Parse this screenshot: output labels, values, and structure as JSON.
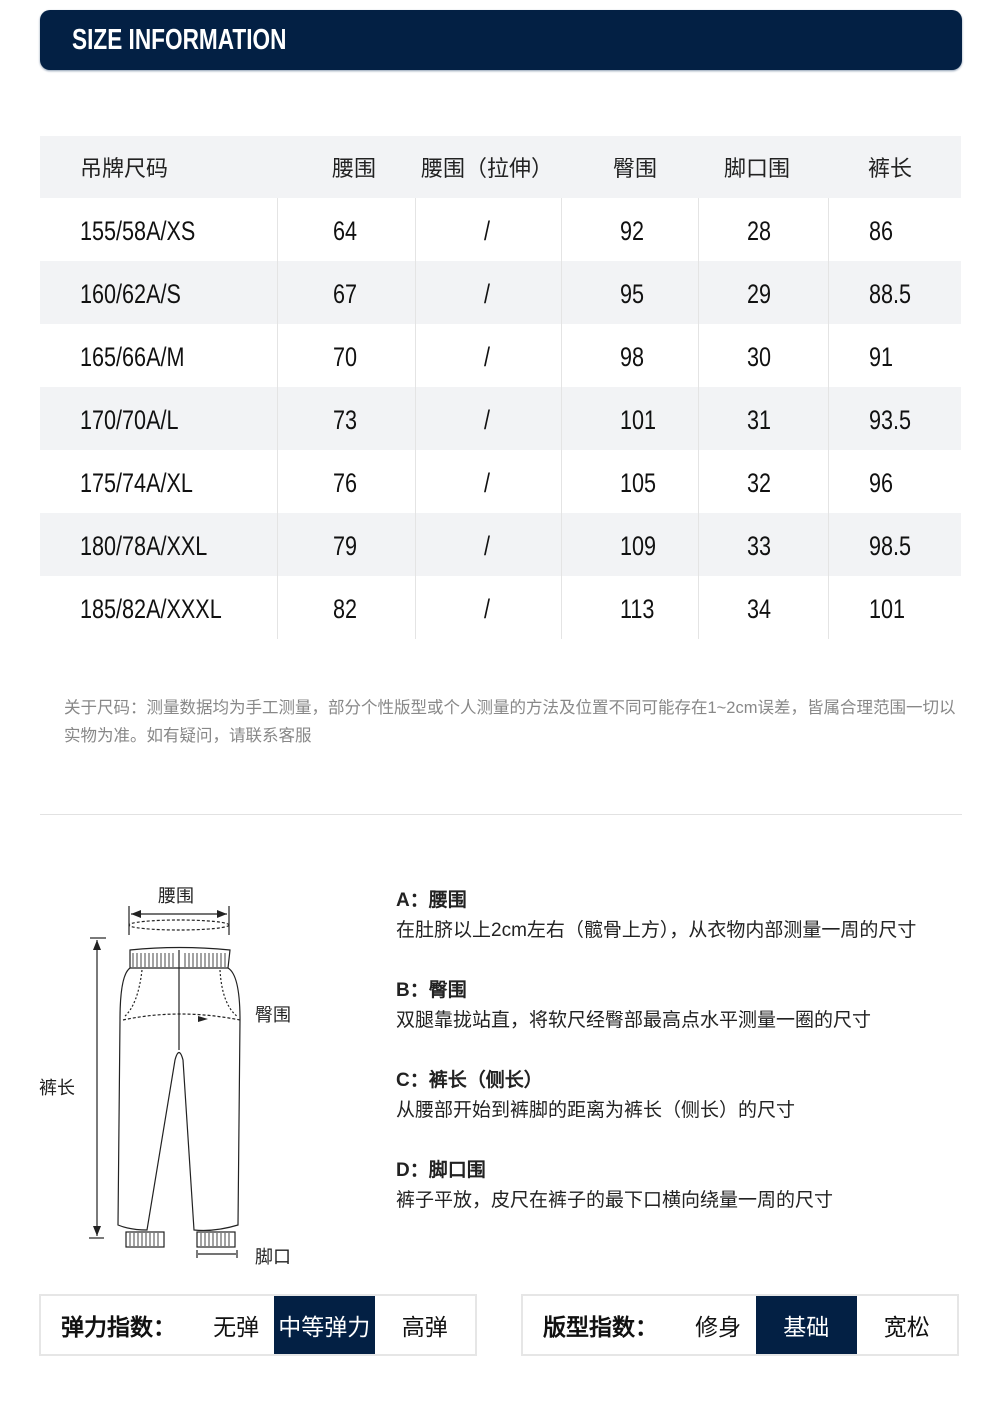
{
  "header": {
    "title": "SIZE INFORMATION"
  },
  "table": {
    "columns": [
      "吊牌尺码",
      "腰围",
      "腰围（拉伸）",
      "臀围",
      "脚口围",
      "裤长"
    ],
    "rows": [
      [
        "155/58A/XS",
        "64",
        "/",
        "92",
        "28",
        "86"
      ],
      [
        "160/62A/S",
        "67",
        "/",
        "95",
        "29",
        "88.5"
      ],
      [
        "165/66A/M",
        "70",
        "/",
        "98",
        "30",
        "91"
      ],
      [
        "170/70A/L",
        "73",
        "/",
        "101",
        "31",
        "93.5"
      ],
      [
        "175/74A/XL",
        "76",
        "/",
        "105",
        "32",
        "96"
      ],
      [
        "180/78A/XXL",
        "79",
        "/",
        "109",
        "33",
        "98.5"
      ],
      [
        "185/82A/XXXL",
        "82",
        "/",
        "113",
        "34",
        "101"
      ]
    ]
  },
  "note": "关于尺码：测量数据均为手工测量，部分个性版型或个人测量的方法及位置不同可能存在1~2cm误差，皆属合理范围一切以实物为准。如有疑问，请联系客服",
  "diagram": {
    "waist": "腰围",
    "hip": "臀围",
    "length": "裤长",
    "hem": "脚口"
  },
  "measures": [
    {
      "title": "A：腰围",
      "text": "在肚脐以上2cm左右（髋骨上方），从衣物内部测量一周的尺寸"
    },
    {
      "title": "B：臀围",
      "text": "双腿靠拢站直，将软尺经臀部最高点水平测量一圈的尺寸"
    },
    {
      "title": "C：裤长（侧长）",
      "text": "从腰部开始到裤脚的距离为裤长（侧长）的尺寸"
    },
    {
      "title": "D：脚口围",
      "text": "裤子平放，皮尺在裤子的最下口横向绕量一周的尺寸"
    }
  ],
  "elasticity": {
    "label": "弹力指数：",
    "options": [
      "无弹",
      "中等弹力",
      "高弹"
    ],
    "selected": "中等弹力"
  },
  "fit": {
    "label": "版型指数：",
    "options": [
      "修身",
      "基础",
      "宽松"
    ],
    "selected": "基础"
  },
  "colors": {
    "accent": "#032044",
    "stripe": "#f2f3f5"
  }
}
